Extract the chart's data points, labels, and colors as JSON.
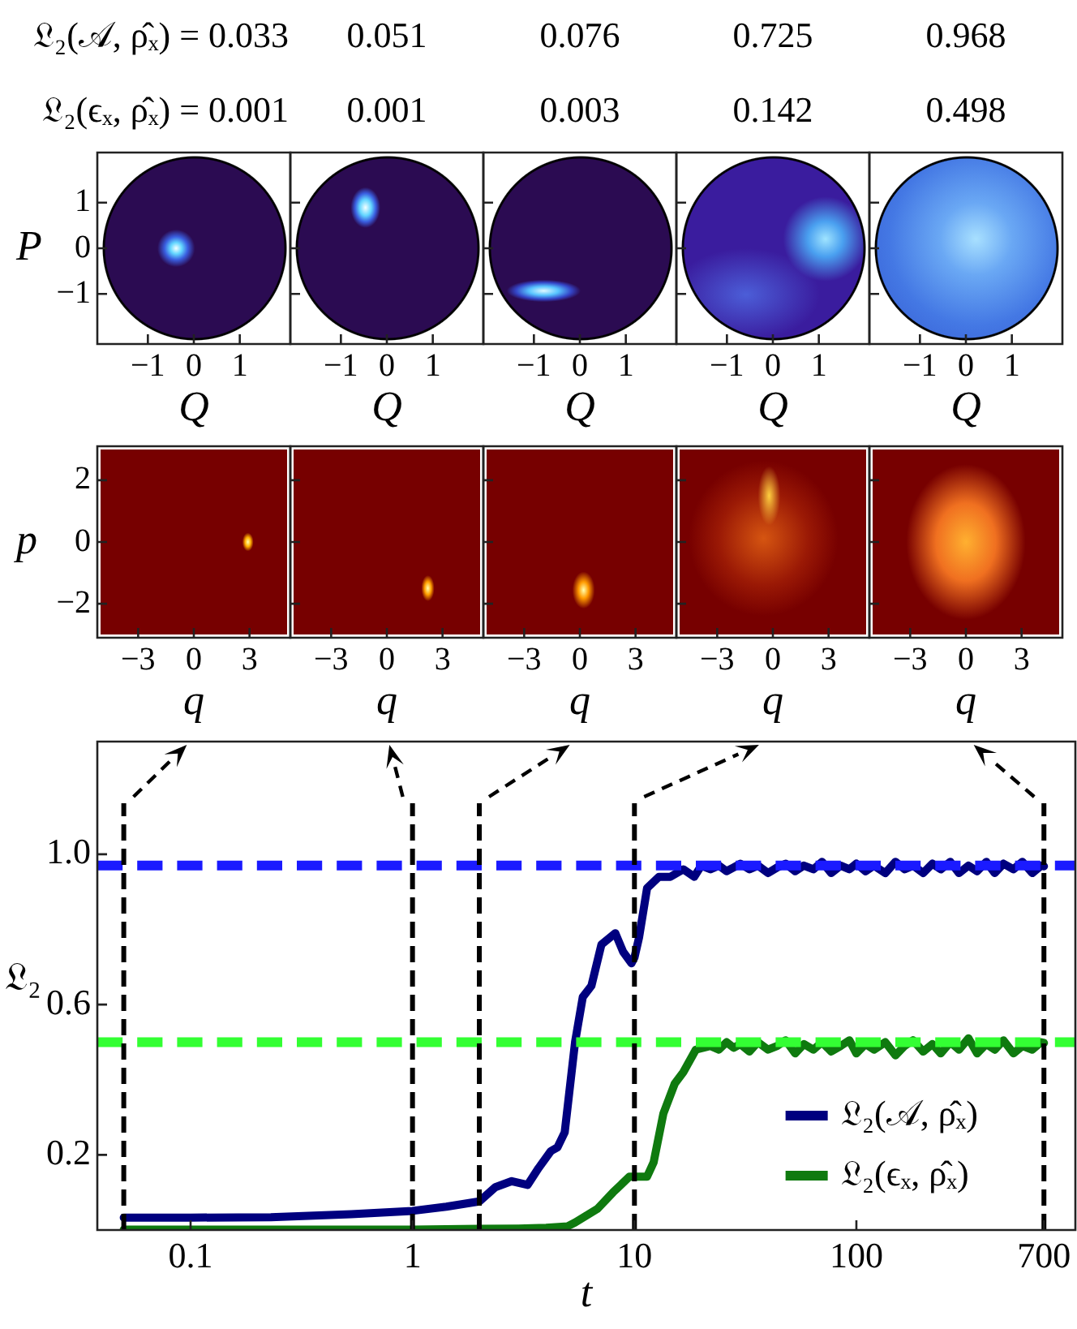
{
  "chart_data": [
    {
      "type": "scatter",
      "title": "𝔏₂(𝒜, ρ̂ₓ) = 0.033",
      "subtitle": "𝔏₂(ϵₓ, ρ̂ₓ) = 0.001",
      "xlabel": "Q",
      "ylabel": "P",
      "xlim": [
        -2.1,
        2.1
      ],
      "xticks": [
        -1,
        0,
        1
      ],
      "ylim": [
        -2.1,
        2.1
      ],
      "yticks": [
        -1,
        0,
        1
      ]
    },
    {
      "type": "scatter",
      "title": "0.051",
      "subtitle": "0.001",
      "xlabel": "Q",
      "xlim": [
        -2.1,
        2.1
      ],
      "xticks": [
        -1,
        0,
        1
      ],
      "ylim": [
        -2.1,
        2.1
      ],
      "yticks": [
        -1,
        0,
        1
      ],
      "tick_labels": "x"
    },
    {
      "type": "scatter",
      "title": "0.076",
      "subtitle": "0.003",
      "xlabel": "Q",
      "xlim": [
        -2.1,
        2.1
      ],
      "xticks": [
        -1,
        0,
        1
      ],
      "ylim": [
        -2.1,
        2.1
      ],
      "yticks": [
        -1,
        0,
        1
      ],
      "tick_labels": "x"
    },
    {
      "type": "scatter",
      "title": "0.725",
      "subtitle": "0.142",
      "xlabel": "Q",
      "xlim": [
        -2.1,
        2.1
      ],
      "xticks": [
        -1,
        0,
        1
      ],
      "ylim": [
        -2.1,
        2.1
      ],
      "yticks": [
        -1,
        0,
        1
      ],
      "tick_labels": "x"
    },
    {
      "type": "scatter",
      "title": "0.968",
      "subtitle": "0.498",
      "xlabel": "Q",
      "xlim": [
        -2.1,
        2.1
      ],
      "xticks": [
        -1,
        0,
        1
      ],
      "ylim": [
        -2.1,
        2.1
      ],
      "yticks": [
        -1,
        0,
        1
      ],
      "tick_labels": "x"
    },
    {
      "type": "scatter",
      "xlabel": "q",
      "ylabel": "p",
      "xlim": [
        -5.2,
        5.2
      ],
      "xticks": [
        -3,
        0,
        3
      ],
      "ylim": [
        -3.1,
        3.1
      ],
      "yticks": [
        -2,
        0,
        2
      ]
    },
    {
      "type": "scatter",
      "xlabel": "q",
      "xlim": [
        -5.2,
        5.2
      ],
      "xticks": [
        -3,
        0,
        3
      ],
      "ylim": [
        -3.1,
        3.1
      ],
      "yticks": [
        -2,
        0,
        2
      ],
      "tick_labels": "x"
    },
    {
      "type": "scatter",
      "xlabel": "q",
      "xlim": [
        -5.2,
        5.2
      ],
      "xticks": [
        -3,
        0,
        3
      ],
      "ylim": [
        -3.1,
        3.1
      ],
      "yticks": [
        -2,
        0,
        2
      ],
      "tick_labels": "x"
    },
    {
      "type": "scatter",
      "xlabel": "q",
      "xlim": [
        -5.2,
        5.2
      ],
      "xticks": [
        -3,
        0,
        3
      ],
      "ylim": [
        -3.1,
        3.1
      ],
      "yticks": [
        -2,
        0,
        2
      ],
      "tick_labels": "x"
    },
    {
      "type": "scatter",
      "xlabel": "q",
      "xlim": [
        -5.2,
        5.2
      ],
      "xticks": [
        -3,
        0,
        3
      ],
      "ylim": [
        -3.1,
        3.1
      ],
      "yticks": [
        -2,
        0,
        2
      ],
      "tick_labels": "x"
    },
    {
      "type": "line",
      "xlabel": "t",
      "ylabel": "𝔏₂",
      "log": "x",
      "xlim": [
        0.038,
        970
      ],
      "xticks": [
        0.1,
        1,
        10,
        100,
        700
      ],
      "ylim": [
        0,
        1.3
      ],
      "yticks": [
        0.2,
        0.6,
        {
          "value": 1,
          "label": "1.0"
        }
      ],
      "legend": "bottom right",
      "series": [
        {
          "name": "𝔏₂(𝒜, ρ̂ₓ)",
          "color": "#00007f",
          "x": [
            0.05,
            0.1,
            0.23,
            0.53,
            1,
            1.42,
            2,
            2.36,
            2.8,
            3.3,
            3.7,
            4.2,
            4.5,
            4.85,
            5.4,
            5.85,
            6.4,
            7.1,
            8.2,
            8.9,
            9.7,
            10,
            10.5,
            11.4,
            12.9,
            14.5,
            16.6,
            18.6,
            20,
            22,
            24,
            26,
            28,
            30,
            33,
            36,
            40,
            44,
            48,
            53,
            58,
            64,
            70,
            77,
            85,
            93,
            100,
            110,
            120,
            135,
            150,
            165,
            180,
            200,
            220,
            240,
            265,
            290,
            320,
            350,
            385,
            420,
            460,
            510,
            560,
            620,
            680,
            700
          ],
          "values": [
            0.033,
            0.033,
            0.034,
            0.042,
            0.051,
            0.062,
            0.076,
            0.114,
            0.13,
            0.12,
            0.165,
            0.21,
            0.22,
            0.26,
            0.5,
            0.62,
            0.65,
            0.76,
            0.79,
            0.74,
            0.71,
            0.725,
            0.78,
            0.91,
            0.94,
            0.94,
            0.96,
            0.94,
            0.97,
            0.96,
            0.97,
            0.955,
            0.965,
            0.975,
            0.96,
            0.97,
            0.95,
            0.965,
            0.975,
            0.955,
            0.97,
            0.96,
            0.98,
            0.95,
            0.97,
            0.96,
            0.975,
            0.955,
            0.97,
            0.95,
            0.98,
            0.96,
            0.97,
            0.95,
            0.975,
            0.96,
            0.98,
            0.95,
            0.97,
            0.955,
            0.98,
            0.95,
            0.975,
            0.96,
            0.98,
            0.95,
            0.97,
            0.968
          ]
        },
        {
          "name": "𝔏₂(ϵₓ, ρ̂ₓ)",
          "color": "#0f7a0f",
          "x": [
            0.05,
            0.5,
            1,
            2,
            3,
            4,
            5,
            5.4,
            6.8,
            8,
            9.5,
            10,
            11.4,
            12.2,
            13.5,
            15.2,
            16.6,
            18.9,
            22,
            24,
            26,
            28,
            30,
            33,
            36,
            40,
            44,
            48,
            53,
            58,
            64,
            70,
            77,
            85,
            93,
            100,
            110,
            120,
            135,
            150,
            165,
            180,
            200,
            220,
            240,
            265,
            290,
            320,
            350,
            385,
            420,
            460,
            510,
            560,
            620,
            680,
            700
          ],
          "values": [
            0.001,
            0.001,
            0.001,
            0.003,
            0.004,
            0.006,
            0.01,
            0.02,
            0.056,
            0.1,
            0.142,
            0.142,
            0.142,
            0.18,
            0.31,
            0.39,
            0.42,
            0.48,
            0.49,
            0.48,
            0.5,
            0.485,
            0.495,
            0.475,
            0.5,
            0.48,
            0.49,
            0.505,
            0.47,
            0.495,
            0.48,
            0.5,
            0.475,
            0.49,
            0.505,
            0.47,
            0.495,
            0.48,
            0.5,
            0.465,
            0.49,
            0.505,
            0.475,
            0.495,
            0.47,
            0.5,
            0.48,
            0.51,
            0.47,
            0.495,
            0.48,
            0.505,
            0.47,
            0.49,
            0.48,
            0.5,
            0.498
          ]
        }
      ],
      "ref_lines": [
        {
          "axis": "y",
          "value": 0.97,
          "color": "#1a1aff",
          "line_style": "dashed"
        },
        {
          "axis": "y",
          "value": 0.5,
          "color": "#33ff33",
          "line_style": "dashed"
        },
        {
          "axis": "x",
          "value": 0.05,
          "color": "#000000",
          "line_style": "dashed"
        },
        {
          "axis": "x",
          "value": 1,
          "color": "#000000",
          "line_style": "dashed"
        },
        {
          "axis": "x",
          "value": 2,
          "color": "#000000",
          "line_style": "dashed"
        },
        {
          "axis": "x",
          "value": 10,
          "color": "#000000",
          "line_style": "dashed"
        },
        {
          "axis": "x",
          "value": 700,
          "color": "#000000",
          "line_style": "dashed"
        }
      ]
    }
  ]
}
